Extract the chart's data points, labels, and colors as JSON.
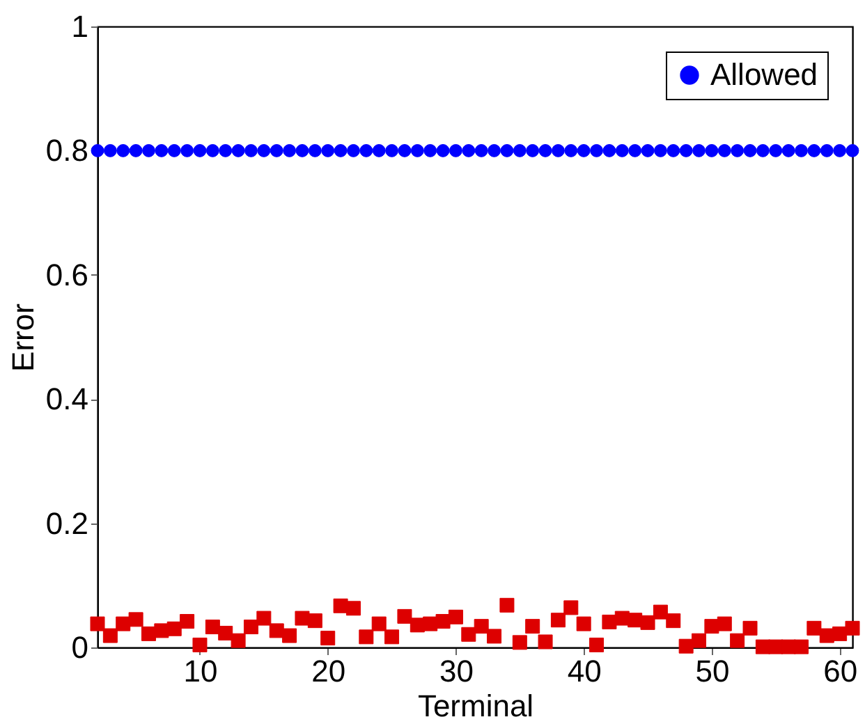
{
  "chart_data": {
    "type": "scatter",
    "xlabel": "Terminal",
    "ylabel": "Error",
    "xlim": [
      2,
      61
    ],
    "ylim": [
      0,
      1
    ],
    "xticks": [
      10,
      20,
      30,
      40,
      50,
      60
    ],
    "yticks": [
      0,
      0.2,
      0.4,
      0.6,
      0.8,
      1
    ],
    "grid": false,
    "legend": "top right",
    "x": [
      2,
      3,
      4,
      5,
      6,
      7,
      8,
      9,
      10,
      11,
      12,
      13,
      14,
      15,
      16,
      17,
      18,
      19,
      20,
      21,
      22,
      23,
      24,
      25,
      26,
      27,
      28,
      29,
      30,
      31,
      32,
      33,
      34,
      35,
      36,
      37,
      38,
      39,
      40,
      41,
      42,
      43,
      44,
      45,
      46,
      47,
      48,
      49,
      50,
      51,
      52,
      53,
      54,
      55,
      56,
      57,
      58,
      59,
      60,
      61
    ],
    "series": [
      {
        "name": "Allowed",
        "marker": "circle",
        "color": "#0000ff",
        "values": [
          0.8,
          0.8,
          0.8,
          0.8,
          0.8,
          0.8,
          0.8,
          0.8,
          0.8,
          0.8,
          0.8,
          0.8,
          0.8,
          0.8,
          0.8,
          0.8,
          0.8,
          0.8,
          0.8,
          0.8,
          0.8,
          0.8,
          0.8,
          0.8,
          0.8,
          0.8,
          0.8,
          0.8,
          0.8,
          0.8,
          0.8,
          0.8,
          0.8,
          0.8,
          0.8,
          0.8,
          0.8,
          0.8,
          0.8,
          0.8,
          0.8,
          0.8,
          0.8,
          0.8,
          0.8,
          0.8,
          0.8,
          0.8,
          0.8,
          0.8,
          0.8,
          0.8,
          0.8,
          0.8,
          0.8,
          0.8,
          0.8,
          0.8,
          0.8,
          0.8
        ]
      },
      {
        "marker": "square",
        "color": "#dd0000",
        "values": [
          0.038,
          0.019,
          0.038,
          0.045,
          0.022,
          0.027,
          0.03,
          0.042,
          0.004,
          0.033,
          0.023,
          0.011,
          0.033,
          0.047,
          0.027,
          0.019,
          0.047,
          0.043,
          0.015,
          0.067,
          0.063,
          0.017,
          0.038,
          0.017,
          0.05,
          0.036,
          0.038,
          0.042,
          0.049,
          0.021,
          0.034,
          0.018,
          0.068,
          0.008,
          0.034,
          0.009,
          0.044,
          0.064,
          0.038,
          0.004,
          0.041,
          0.047,
          0.044,
          0.04,
          0.057,
          0.043,
          0.002,
          0.011,
          0.034,
          0.038,
          0.011,
          0.031,
          0.001,
          0.001,
          0.001,
          0.001,
          0.031,
          0.019,
          0.022,
          0.031
        ]
      }
    ]
  }
}
